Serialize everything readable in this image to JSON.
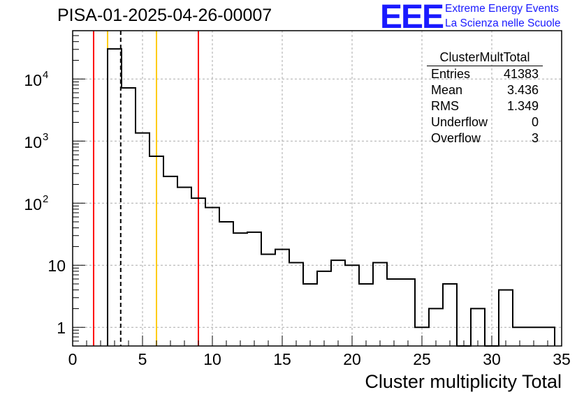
{
  "chart_data": {
    "type": "histogram",
    "title": "PISA-01-2025-04-26-00007",
    "xlabel": "Cluster multiplicity Total",
    "ylabel": "",
    "xlim": [
      0,
      35
    ],
    "ylim": [
      0.5,
      60000
    ],
    "yscale": "log",
    "grid": true,
    "x_ticks": [
      "0",
      "5",
      "10",
      "15",
      "20",
      "25",
      "30",
      "35"
    ],
    "y_ticks": [
      {
        "value": 1,
        "base": "1",
        "exp": ""
      },
      {
        "value": 10,
        "base": "10",
        "exp": ""
      },
      {
        "value": 100,
        "base": "10",
        "exp": "2"
      },
      {
        "value": 1000,
        "base": "10",
        "exp": "3"
      },
      {
        "value": 10000,
        "base": "10",
        "exp": "4"
      }
    ],
    "bins": {
      "edges": [
        2.5,
        3.5,
        4.5,
        5.5,
        6.5,
        7.5,
        8.5,
        9.5,
        10.5,
        11.5,
        12.5,
        13.5,
        14.5,
        15.5,
        16.5,
        17.5,
        18.5,
        19.5,
        20.5,
        21.5,
        22.5,
        23.5,
        24.5,
        25.5,
        26.5,
        27.5,
        28.5,
        29.5,
        30.5,
        31.5,
        32.5,
        33.5,
        34.5
      ],
      "counts": [
        30500,
        7200,
        1350,
        570,
        270,
        180,
        120,
        85,
        50,
        33,
        34,
        15,
        18,
        11,
        5,
        8,
        12,
        10,
        5,
        11,
        6,
        6,
        1,
        2,
        5,
        0,
        2,
        0,
        4,
        1,
        1,
        1
      ]
    },
    "vlines": [
      {
        "x": 1.5,
        "color": "#ff0000",
        "style": "solid"
      },
      {
        "x": 2.5,
        "color": "#ffcc00",
        "style": "solid"
      },
      {
        "x": 3.44,
        "color": "#000000",
        "style": "dashed"
      },
      {
        "x": 6.0,
        "color": "#ffcc00",
        "style": "solid"
      },
      {
        "x": 9.0,
        "color": "#ff0000",
        "style": "solid"
      }
    ],
    "stats_box": {
      "name": "ClusterMultTotal",
      "rows": [
        {
          "label": "Entries",
          "value": "41383"
        },
        {
          "label": "Mean",
          "value": "3.436"
        },
        {
          "label": "RMS",
          "value": "1.349"
        },
        {
          "label": "Underflow",
          "value": "0"
        },
        {
          "label": "Overflow",
          "value": "3"
        }
      ]
    }
  },
  "logo": {
    "letters": "EEE",
    "line1": "Extreme Energy Events",
    "line2": "La Scienza nelle Scuole"
  },
  "colors": {
    "red": "#ff0000",
    "yellow": "#ffcc00",
    "logo_blue": "#1a1aff",
    "grid": "#aaaaaa"
  }
}
